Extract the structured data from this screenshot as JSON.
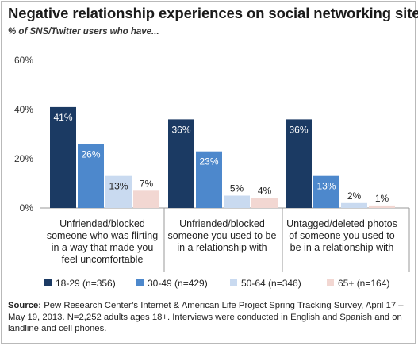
{
  "header": {
    "title": "Negative relationship experiences on social networking sites",
    "subtitle": "% of SNS/Twitter users who have..."
  },
  "source": {
    "label": "Source:",
    "text": "Pew Research Center’s Internet & American Life Project Spring Tracking Survey, April 17 – May 19, 2013. N=2,252 adults ages 18+. Interviews were conducted in English and Spanish and on landline and cell phones."
  },
  "chart_data": {
    "type": "bar",
    "title": "",
    "xlabel": "",
    "ylabel": "",
    "ylim": [
      0,
      60
    ],
    "yticks": [
      0,
      20,
      40,
      60
    ],
    "ytick_labels": [
      "0%",
      "20%",
      "40%",
      "60%"
    ],
    "grid": false,
    "legend_position": "bottom",
    "categories": [
      [
        "Unfriended/blocked",
        "someone who was flirting",
        "in a way that made you",
        "feel uncomfortable"
      ],
      [
        "Unfriended/blocked",
        "someone you used to be",
        "in a relationship with"
      ],
      [
        "Untagged/deleted photos",
        "of someone you used to",
        "be in a relationship with"
      ]
    ],
    "series": [
      {
        "name": "18-29 (n=356)",
        "color": "#1b3a63",
        "label_color": "#ffffff",
        "values": [
          41,
          36,
          36
        ],
        "labels": [
          "41%",
          "36%",
          "36%"
        ]
      },
      {
        "name": "30-49 (n=429)",
        "color": "#4d88cc",
        "label_color": "#ffffff",
        "values": [
          26,
          23,
          13
        ],
        "labels": [
          "26%",
          "23%",
          "13%"
        ]
      },
      {
        "name": "50-64 (n=346)",
        "color": "#c9daf0",
        "label_color": "#222222",
        "values": [
          13,
          5,
          2
        ],
        "labels": [
          "13%",
          "5%",
          "2%"
        ]
      },
      {
        "name": "65+ (n=164)",
        "color": "#f2d7d2",
        "label_color": "#222222",
        "values": [
          7,
          4,
          1
        ],
        "labels": [
          "7%",
          "4%",
          "1%"
        ]
      }
    ]
  }
}
